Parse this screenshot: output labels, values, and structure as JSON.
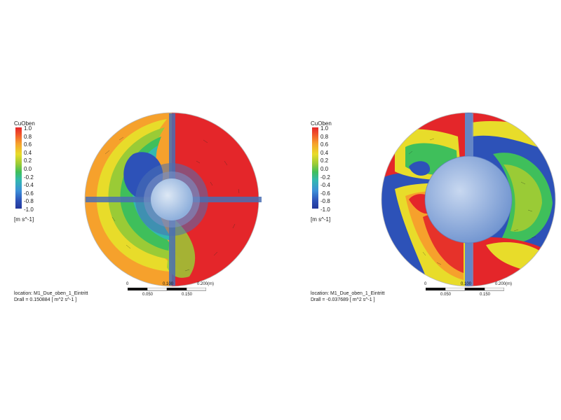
{
  "legend": {
    "title": "CuOben",
    "ticks": [
      "1.0",
      "0.8",
      "0.6",
      "0.4",
      "0.2",
      "0.0",
      "-0.2",
      "-0.4",
      "-0.6",
      "-0.8",
      "-1.0"
    ],
    "unit": "[m s^-1]"
  },
  "scale_bar": {
    "top_labels": [
      "0",
      "0.100",
      "0.200",
      "(m)"
    ],
    "bottom_labels": [
      "0.050",
      "0.150"
    ]
  },
  "plots": [
    {
      "location": "location: M1_Due_oben_1_Eintritt",
      "drall": "Drall = 0.150884 [ m^2 s^-1 ]"
    },
    {
      "location": "location: M1_Due_oben_1_Eintritt",
      "drall": "Drall = -0.037689 [ m^2 s^-1 ]"
    }
  ],
  "colors": {
    "high": "#e4262a",
    "mid_high": "#f6a12c",
    "mid": "#e8dc2a",
    "mid_low": "#3fbf5b",
    "low": "#2d52b8",
    "hub": "#a9c3e6",
    "strut": "#4a6fb3"
  }
}
